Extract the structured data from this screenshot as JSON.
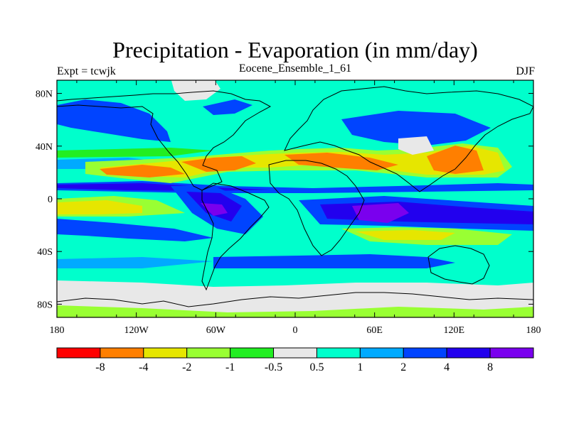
{
  "title": "Precipitation - Evaporation (in mm/day)",
  "subtitle_left": "Expt = tcwjk",
  "subtitle_center": "Eocene_Ensemble_1_61",
  "subtitle_right": "DJF",
  "lon_ticks": [
    "180",
    "120W",
    "60W",
    "0",
    "60E",
    "120E",
    "180"
  ],
  "lat_ticks": [
    "80N",
    "40N",
    "0",
    "40S",
    "80S"
  ],
  "colorbar": {
    "colors": [
      "#ff0000",
      "#ff7f00",
      "#e6e600",
      "#99ff33",
      "#22ee22",
      "#e8e8e8",
      "#00ffcc",
      "#00aaff",
      "#0044ff",
      "#2200ee",
      "#7a00ee"
    ],
    "labels": [
      "-8",
      "-4",
      "-2",
      "-1",
      "-0.5",
      "0.5",
      "1",
      "2",
      "4",
      "8"
    ]
  },
  "colors": {
    "orange": "#ff7f00",
    "yellow": "#e6e600",
    "ltgreen": "#99ff33",
    "green": "#22ee22",
    "gray": "#e8e8e8",
    "cyan": "#00ffcc",
    "ltblue": "#00aaff",
    "blue": "#0044ff",
    "dkblue": "#2200ee",
    "purple": "#7a00ee"
  }
}
